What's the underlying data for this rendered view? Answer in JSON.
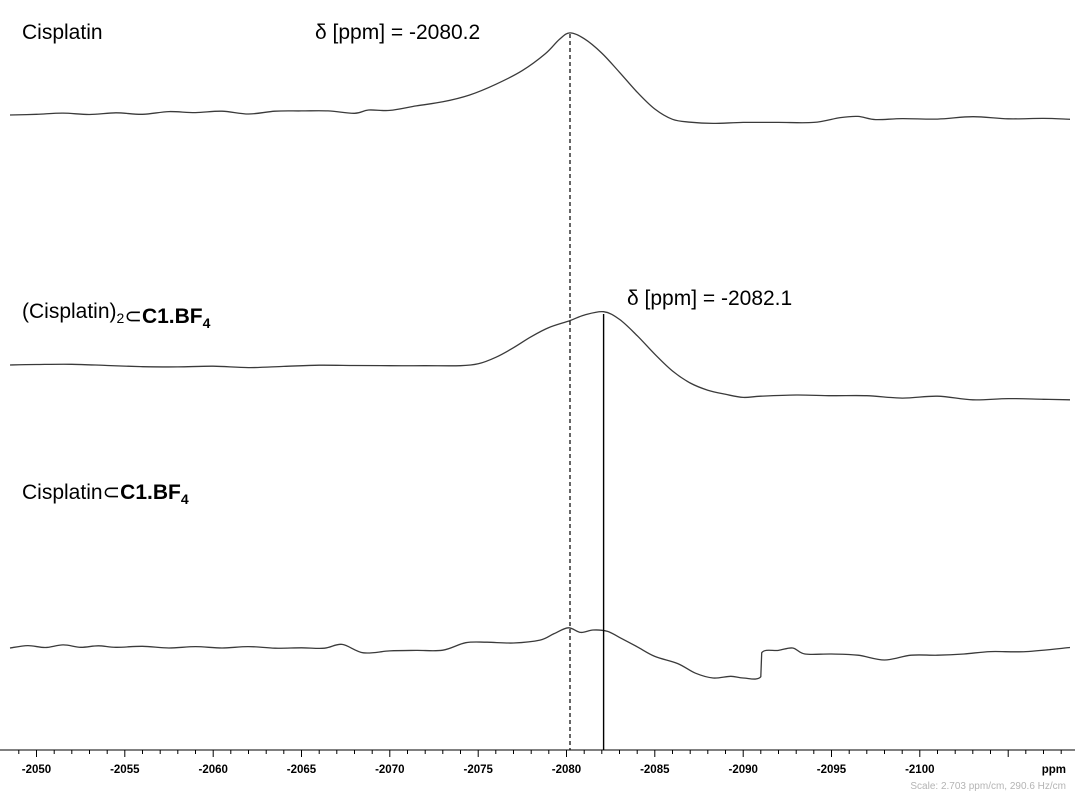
{
  "chart_data": {
    "type": "line",
    "title": "",
    "xlabel": "ppm",
    "ylabel": "",
    "xlim": [
      -2048.5,
      -2108.5
    ],
    "x_reversed": true,
    "x_ticks": [
      -2050,
      -2055,
      -2060,
      -2065,
      -2070,
      -2075,
      -2080,
      -2085,
      -2090,
      -2095,
      -2100
    ],
    "x_tick_labels": [
      "-2050",
      "-2055",
      "-2060",
      "-2065",
      "-2070",
      "-2075",
      "-2080",
      "-2085",
      "-2090",
      "-2095",
      "-2100"
    ],
    "grid": false,
    "legend": "none",
    "series": [
      {
        "name_plain": "Cisplatin",
        "name_parts": [
          {
            "t": "Cisplatin"
          }
        ],
        "x": [
          -2048.5,
          -2050,
          -2051.5,
          -2053,
          -2054.5,
          -2056,
          -2057.5,
          -2059,
          -2060.5,
          -2062,
          -2063.5,
          -2065,
          -2066.5,
          -2068,
          -2068.8,
          -2070,
          -2071.5,
          -2073,
          -2074.5,
          -2076,
          -2077.5,
          -2078.8,
          -2079.6,
          -2080.2,
          -2081,
          -2082,
          -2083,
          -2084,
          -2085,
          -2086,
          -2087,
          -2088.3,
          -2090,
          -2092,
          -2094,
          -2095.5,
          -2096.5,
          -2097.5,
          -2099,
          -2101,
          -2103,
          -2105,
          -2107,
          -2108.5
        ],
        "y": [
          0,
          0.3,
          0.8,
          0.2,
          0.9,
          0.3,
          1.4,
          1.0,
          1.6,
          0.4,
          1.6,
          1.7,
          1.7,
          0.7,
          2.1,
          1.9,
          3.8,
          5.5,
          8.3,
          12.8,
          18.5,
          25.5,
          31.5,
          34.2,
          31.8,
          25.8,
          17.8,
          9.5,
          2.5,
          -1.8,
          -3.0,
          -3.5,
          -3.1,
          -3.1,
          -3.1,
          -1.1,
          -0.6,
          -1.9,
          -1.5,
          -1.7,
          -0.7,
          -1.6,
          -1.4,
          -1.8
        ]
      },
      {
        "name_plain": "(Cisplatin)2⊂C1.BF4",
        "name_parts": [
          {
            "t": "(Cisplatin)"
          },
          {
            "t": "2",
            "sub": true
          },
          {
            "t": "⊂"
          },
          {
            "t": "C1.BF",
            "bold": true
          },
          {
            "t": "4",
            "sub": true,
            "bold": true
          }
        ],
        "x": [
          -2048.5,
          -2050,
          -2052,
          -2054,
          -2056,
          -2058,
          -2060,
          -2062,
          -2064,
          -2066,
          -2068,
          -2070,
          -2072,
          -2074,
          -2075,
          -2076,
          -2077,
          -2078,
          -2079,
          -2080.2,
          -2081,
          -2082.1,
          -2083,
          -2084,
          -2085,
          -2086,
          -2087,
          -2088,
          -2089,
          -2090,
          -2091,
          -2093,
          -2095,
          -2097,
          -2099,
          -2101,
          -2103,
          -2105,
          -2107,
          -2108.5
        ],
        "y": [
          0,
          0.2,
          0.3,
          -0.2,
          -0.7,
          -0.8,
          -0.5,
          -1.1,
          -0.6,
          -0.1,
          -0.2,
          -0.3,
          -0.3,
          -0.3,
          0.5,
          3.2,
          7.2,
          11.8,
          15.6,
          18.5,
          20.8,
          22.2,
          19.0,
          12.2,
          4.5,
          -2.5,
          -7.5,
          -10.5,
          -12.2,
          -13.5,
          -13.0,
          -12.5,
          -12.8,
          -12.8,
          -13.8,
          -13.0,
          -14.5,
          -14.0,
          -14.3,
          -14.5
        ]
      },
      {
        "name_plain": "Cisplatin⊂C1.BF4",
        "name_parts": [
          {
            "t": "Cisplatin"
          },
          {
            "t": "⊂"
          },
          {
            "t": "C1.BF",
            "bold": true
          },
          {
            "t": "4",
            "sub": true,
            "bold": true
          }
        ],
        "x": [
          -2048.5,
          -2049.5,
          -2050.5,
          -2051.5,
          -2052.5,
          -2053.5,
          -2054.5,
          -2056,
          -2057.5,
          -2059,
          -2060.5,
          -2062,
          -2063.5,
          -2065,
          -2066.3,
          -2067.3,
          -2068.5,
          -2070,
          -2071.5,
          -2073,
          -2074.3,
          -2075.5,
          -2077,
          -2078.5,
          -2079.3,
          -2080.1,
          -2080.8,
          -2081.5,
          -2082.3,
          -2083,
          -2084,
          -2085,
          -2086.3,
          -2087.3,
          -2088.3,
          -2089.3,
          -2090,
          -2091,
          -2091.05,
          -2092,
          -2092.8,
          -2093.5,
          -2095,
          -2096.5,
          -2098,
          -2099.5,
          -2101,
          -2102.5,
          -2104,
          -2106,
          -2108.5
        ],
        "y": [
          0,
          1.0,
          0.2,
          1.3,
          0.3,
          0.9,
          0.3,
          0.7,
          0.0,
          0.6,
          0.0,
          0.6,
          -0.1,
          0.1,
          -0.1,
          1.5,
          -2.0,
          -1.2,
          -1.0,
          -0.9,
          2.2,
          2.4,
          2.1,
          3.3,
          6.0,
          8.4,
          6.5,
          7.5,
          7.0,
          4.4,
          0.5,
          -3.5,
          -6.5,
          -10.5,
          -12.5,
          -11.8,
          -12.5,
          -12.0,
          -2.0,
          -1.0,
          0.0,
          -2.5,
          -2.5,
          -3.0,
          -5.0,
          -3.0,
          -3.0,
          -2.5,
          -1.5,
          -1.5,
          0.2
        ]
      }
    ],
    "reference_lines": [
      {
        "x": -2080.2,
        "style": "dashed"
      },
      {
        "x": -2082.1,
        "style": "solid"
      }
    ],
    "annotations": [
      {
        "text": "δ [ppm] = -2080.2",
        "x": -2080.2
      },
      {
        "text": "δ [ppm] = -2082.1",
        "x": -2082.1
      }
    ],
    "scale_note": "Scale: 2.703 ppm/cm, 290.6 Hz/cm"
  }
}
